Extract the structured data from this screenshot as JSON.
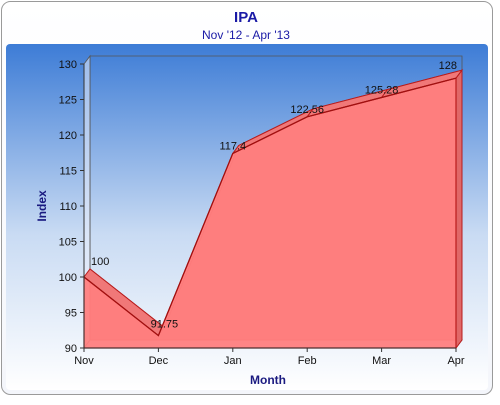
{
  "chart_data": {
    "type": "area",
    "title": "IPA",
    "subtitle": "Nov '12 - Apr '13",
    "xlabel": "Month",
    "ylabel": "Index",
    "categories": [
      "Nov",
      "Dec",
      "Jan",
      "Feb",
      "Mar",
      "Apr"
    ],
    "values": [
      100,
      91.75,
      117.4,
      122.56,
      125.28,
      128
    ],
    "data_labels": [
      "100",
      "91.75",
      "117.4",
      "122.56",
      "125.28",
      "128"
    ],
    "ylim": [
      90,
      130
    ],
    "yticks": [
      90,
      95,
      100,
      105,
      110,
      115,
      120,
      125,
      130
    ],
    "grid": false,
    "legend": "none",
    "three_d": true
  },
  "colors": {
    "title": "#1a1aa6",
    "subtitle": "#1a1aa6",
    "axis_title": "#1a1a80",
    "area_fill": "#ff8080",
    "area_stroke": "#b81c1c",
    "background_top": "#3d7cd6",
    "background_bottom": "#ffffff"
  }
}
